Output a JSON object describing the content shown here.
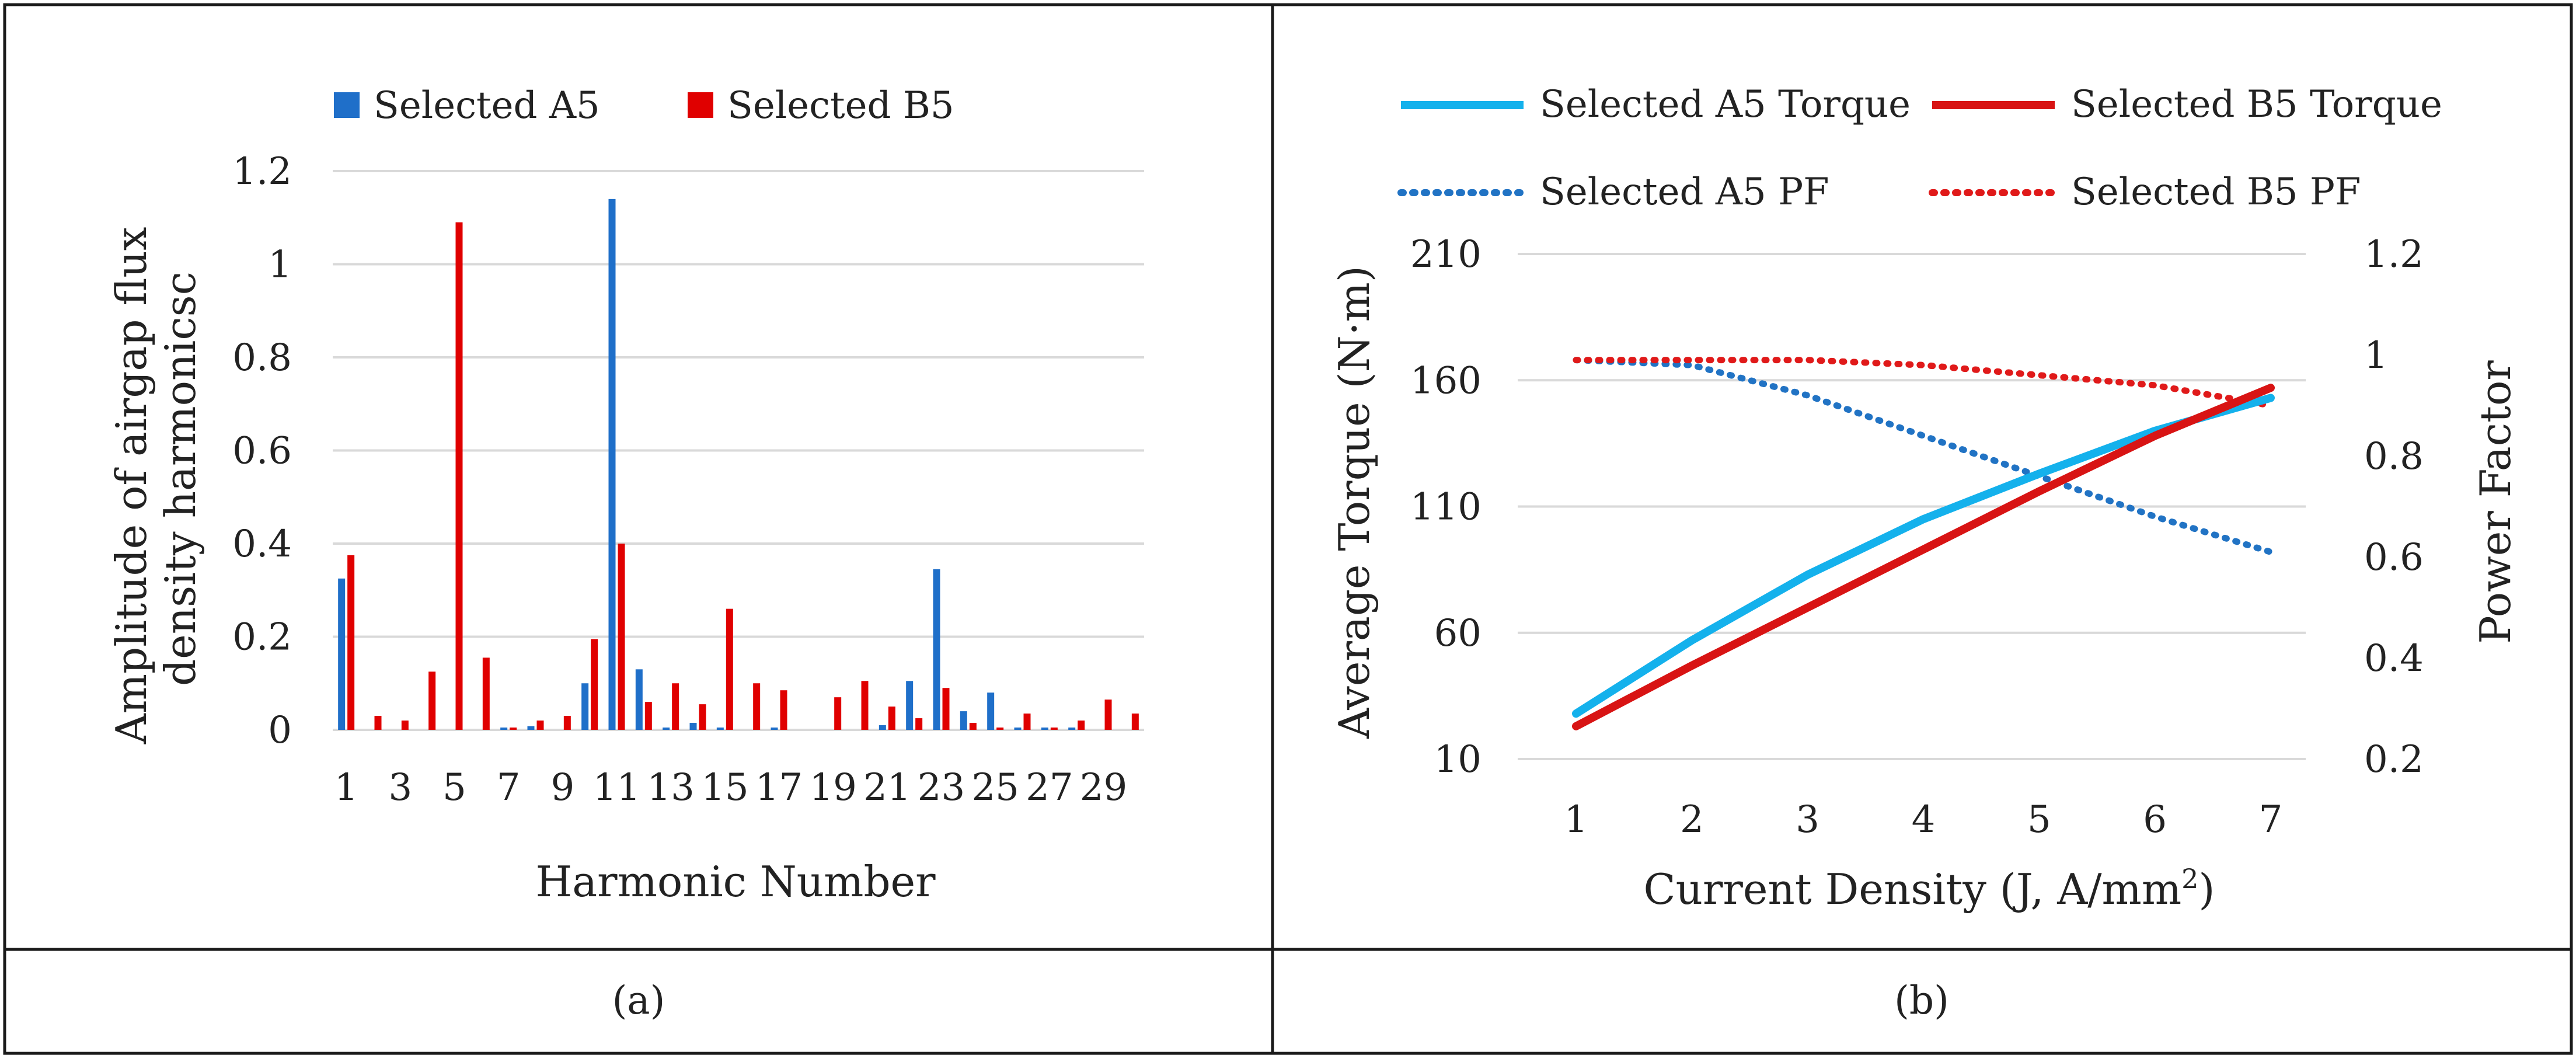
{
  "figure": {
    "panels": [
      {
        "caption": "(a)"
      },
      {
        "caption": "(b)"
      }
    ]
  },
  "colors": {
    "a5_bar": "#1f6fc9",
    "b5_bar": "#e00000",
    "a5_torque": "#14b1ec",
    "b5_torque": "#d81414",
    "a5_pf": "#2173c4",
    "b5_pf": "#e01a1a",
    "grid": "#d9d9d9",
    "border": "#1a1a1a"
  },
  "chart_data": [
    {
      "type": "bar",
      "title": "",
      "xlabel": "Harmonic Number",
      "ylabel_line1": "Amplitude of airgap flux",
      "ylabel_line2": "density harmonicsc",
      "ylim": [
        0,
        1.2
      ],
      "yticks": [
        "0",
        "0.2",
        "0.4",
        "0.6",
        "0.8",
        "1",
        "1.2"
      ],
      "categories": [
        "1",
        "2",
        "3",
        "4",
        "5",
        "6",
        "7",
        "8",
        "9",
        "10",
        "11",
        "12",
        "13",
        "14",
        "15",
        "16",
        "17",
        "18",
        "19",
        "20",
        "21",
        "22",
        "23",
        "24",
        "25",
        "26",
        "27",
        "28",
        "29",
        "30"
      ],
      "xtick_labels": [
        "1",
        "3",
        "5",
        "7",
        "9",
        "11",
        "13",
        "15",
        "17",
        "19",
        "21",
        "23",
        "25",
        "27",
        "29"
      ],
      "legend": [
        "Selected A5",
        "Selected B5"
      ],
      "series": [
        {
          "name": "Selected A5",
          "values": [
            0.325,
            0,
            0,
            0,
            0,
            0,
            0.005,
            0.008,
            0,
            0.1,
            1.14,
            0.13,
            0.005,
            0.015,
            0.005,
            0,
            0.005,
            0,
            0,
            0,
            0.01,
            0.105,
            0.345,
            0.04,
            0.08,
            0.005,
            0.005,
            0.005,
            0,
            0
          ]
        },
        {
          "name": "Selected B5",
          "values": [
            0.375,
            0.03,
            0.02,
            0.125,
            1.09,
            0.155,
            0.005,
            0.02,
            0.03,
            0.195,
            0.4,
            0.06,
            0.1,
            0.055,
            0.26,
            0.1,
            0.085,
            0,
            0.07,
            0.105,
            0.05,
            0.025,
            0.09,
            0.015,
            0.005,
            0.035,
            0.005,
            0.02,
            0.065,
            0.035
          ]
        }
      ]
    },
    {
      "type": "line",
      "title": "",
      "xlabel": "Current Density (J, A/mm",
      "xlabel_sup": "2",
      "xlabel_end": ")",
      "ylabel": "Average Torque (N·m)",
      "y2label": "Power Factor",
      "x": [
        1,
        2,
        3,
        4,
        5,
        6,
        7
      ],
      "xtick_labels": [
        "1",
        "2",
        "3",
        "4",
        "5",
        "6",
        "7"
      ],
      "ylim": [
        10,
        210
      ],
      "yticks": [
        "10",
        "60",
        "110",
        "160",
        "210"
      ],
      "y2lim": [
        0.2,
        1.2
      ],
      "y2ticks": [
        "0.2",
        "0.4",
        "0.6",
        "0.8",
        "1",
        "1.2"
      ],
      "series": [
        {
          "name": "Selected A5 Torque",
          "axis": "left",
          "style": "solid",
          "values": [
            28,
            57,
            83,
            105,
            123,
            140,
            153
          ]
        },
        {
          "name": "Selected B5 Torque",
          "axis": "left",
          "style": "solid",
          "values": [
            23,
            47,
            70,
            93,
            116,
            138,
            157
          ]
        },
        {
          "name": "Selected A5 PF",
          "axis": "right",
          "style": "dotted",
          "values": [
            0.99,
            0.98,
            0.92,
            0.84,
            0.76,
            0.68,
            0.61
          ]
        },
        {
          "name": "Selected B5 PF",
          "axis": "right",
          "style": "dotted",
          "values": [
            0.99,
            0.99,
            0.99,
            0.98,
            0.96,
            0.94,
            0.9
          ]
        }
      ]
    }
  ]
}
